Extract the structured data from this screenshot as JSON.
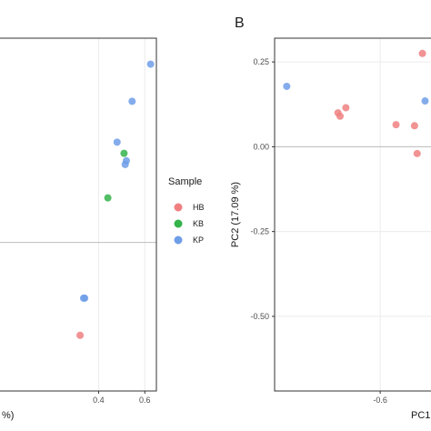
{
  "chart_data": [
    {
      "type": "scatter",
      "panel_label": "",
      "xlabel": "%)",
      "ylabel": "",
      "xlim": [
        -0.05,
        0.65
      ],
      "ylim": [
        -0.4,
        0.55
      ],
      "x_ticks": [
        0.4,
        0.6
      ],
      "x_tick_labels": [
        "0.4",
        "0.6"
      ],
      "y_ticks": [],
      "grid": true,
      "zero_line_y": 0,
      "series": [
        {
          "name": "HB",
          "color": "#f08080",
          "points": [
            [
              0.32,
              -0.25
            ]
          ]
        },
        {
          "name": "KB",
          "color": "#34b34a",
          "points": [
            [
              0.51,
              0.24
            ],
            [
              0.44,
              0.12
            ]
          ]
        },
        {
          "name": "KP",
          "color": "#6f9ee8",
          "points": [
            [
              0.625,
              0.48
            ],
            [
              0.545,
              0.38
            ],
            [
              0.48,
              0.27
            ],
            [
              0.52,
              0.22
            ],
            [
              0.515,
              0.21
            ],
            [
              0.34,
              -0.15
            ],
            [
              0.335,
              -0.15
            ]
          ]
        }
      ]
    },
    {
      "type": "scatter",
      "panel_label": "B",
      "xlabel": "PC1",
      "ylabel": "PC2 (17.09 %)",
      "xlim": [
        -0.8,
        -0.49
      ],
      "ylim": [
        -0.72,
        0.32
      ],
      "x_ticks": [
        -0.6
      ],
      "x_tick_labels": [
        "-0.6"
      ],
      "y_ticks": [
        0.25,
        0.0,
        -0.25,
        -0.5
      ],
      "y_tick_labels": [
        "0.25",
        "0.00",
        "-0.25",
        "-0.50"
      ],
      "grid": true,
      "zero_line_y": 0,
      "series": [
        {
          "name": "HB",
          "color": "#f08080",
          "points": [
            [
              -0.52,
              0.275
            ],
            [
              -0.665,
              0.115
            ],
            [
              -0.68,
              0.1
            ],
            [
              -0.676,
              0.09
            ],
            [
              -0.57,
              0.065
            ],
            [
              -0.535,
              0.062
            ],
            [
              -0.53,
              -0.02
            ]
          ]
        },
        {
          "name": "KP",
          "color": "#6f9ee8",
          "points": [
            [
              -0.777,
              0.178
            ],
            [
              -0.515,
              0.135
            ]
          ]
        }
      ]
    }
  ],
  "legend": {
    "title": "Sample",
    "items": [
      {
        "label": "HB",
        "color": "#f08080"
      },
      {
        "label": "KB",
        "color": "#34b34a"
      },
      {
        "label": "KP",
        "color": "#6f9ee8"
      }
    ]
  },
  "colors": {
    "grid": "#ebebeb",
    "zero_line": "#bdbdbd",
    "frame": "#333333"
  }
}
